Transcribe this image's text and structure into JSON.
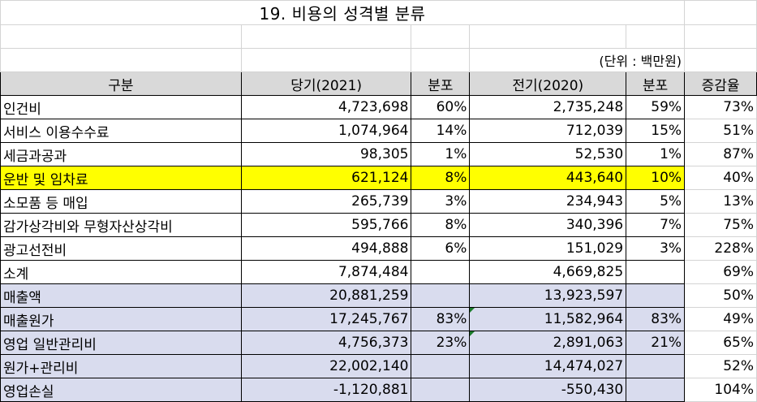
{
  "title": "19. 비용의 성격별 분류",
  "unit": "(단위 : 백만원)",
  "headers": [
    "구분",
    "당기(2021)",
    "분포",
    "전기(2020)",
    "분포",
    "증감율"
  ],
  "rows": [
    {
      "label": "인건비",
      "cur": "4,723,698",
      "cur_pct": "60%",
      "prev": "2,735,248",
      "prev_pct": "59%",
      "rate": "73%"
    },
    {
      "label": "서비스 이용수수료",
      "cur": "1,074,964",
      "cur_pct": "14%",
      "prev": "712,039",
      "prev_pct": "15%",
      "rate": "51%"
    },
    {
      "label": "세금과공과",
      "cur": "98,305",
      "cur_pct": "1%",
      "prev": "52,530",
      "prev_pct": "1%",
      "rate": "87%"
    },
    {
      "label": "운반 및 임차료",
      "cur": "621,124",
      "cur_pct": "8%",
      "prev": "443,640",
      "prev_pct": "10%",
      "rate": "40%"
    },
    {
      "label": "소모품 등 매입",
      "cur": "265,739",
      "cur_pct": "3%",
      "prev": "234,943",
      "prev_pct": "5%",
      "rate": "13%"
    },
    {
      "label": "감가상각비와 무형자산상각비",
      "cur": "595,766",
      "cur_pct": "8%",
      "prev": "340,396",
      "prev_pct": "7%",
      "rate": "75%"
    },
    {
      "label": "광고선전비",
      "cur": "494,888",
      "cur_pct": "6%",
      "prev": "151,029",
      "prev_pct": "3%",
      "rate": "228%"
    },
    {
      "label": "소계",
      "cur": "7,874,484",
      "cur_pct": "",
      "prev": "4,669,825",
      "prev_pct": "",
      "rate": "69%"
    },
    {
      "label": "매출액",
      "cur": "20,881,259",
      "cur_pct": "",
      "prev": "13,923,597",
      "prev_pct": "",
      "rate": "50%"
    },
    {
      "label": "매출원가",
      "cur": "17,245,767",
      "cur_pct": "83%",
      "prev": "11,582,964",
      "prev_pct": "83%",
      "rate": "49%"
    },
    {
      "label": "영업 일반관리비",
      "cur": "4,756,373",
      "cur_pct": "23%",
      "prev": "2,891,063",
      "prev_pct": "21%",
      "rate": "65%"
    },
    {
      "label": "원가+관리비",
      "cur": "22,002,140",
      "cur_pct": "",
      "prev": "14,474,027",
      "prev_pct": "",
      "rate": "52%"
    },
    {
      "label": "영업손실",
      "cur": "-1,120,881",
      "cur_pct": "",
      "prev": "-550,430",
      "prev_pct": "",
      "rate": "104%"
    }
  ],
  "colors": {
    "highlight": "#ffff00",
    "blue_fill": "#d9dcee",
    "header_fill": "#d9d9d9"
  }
}
